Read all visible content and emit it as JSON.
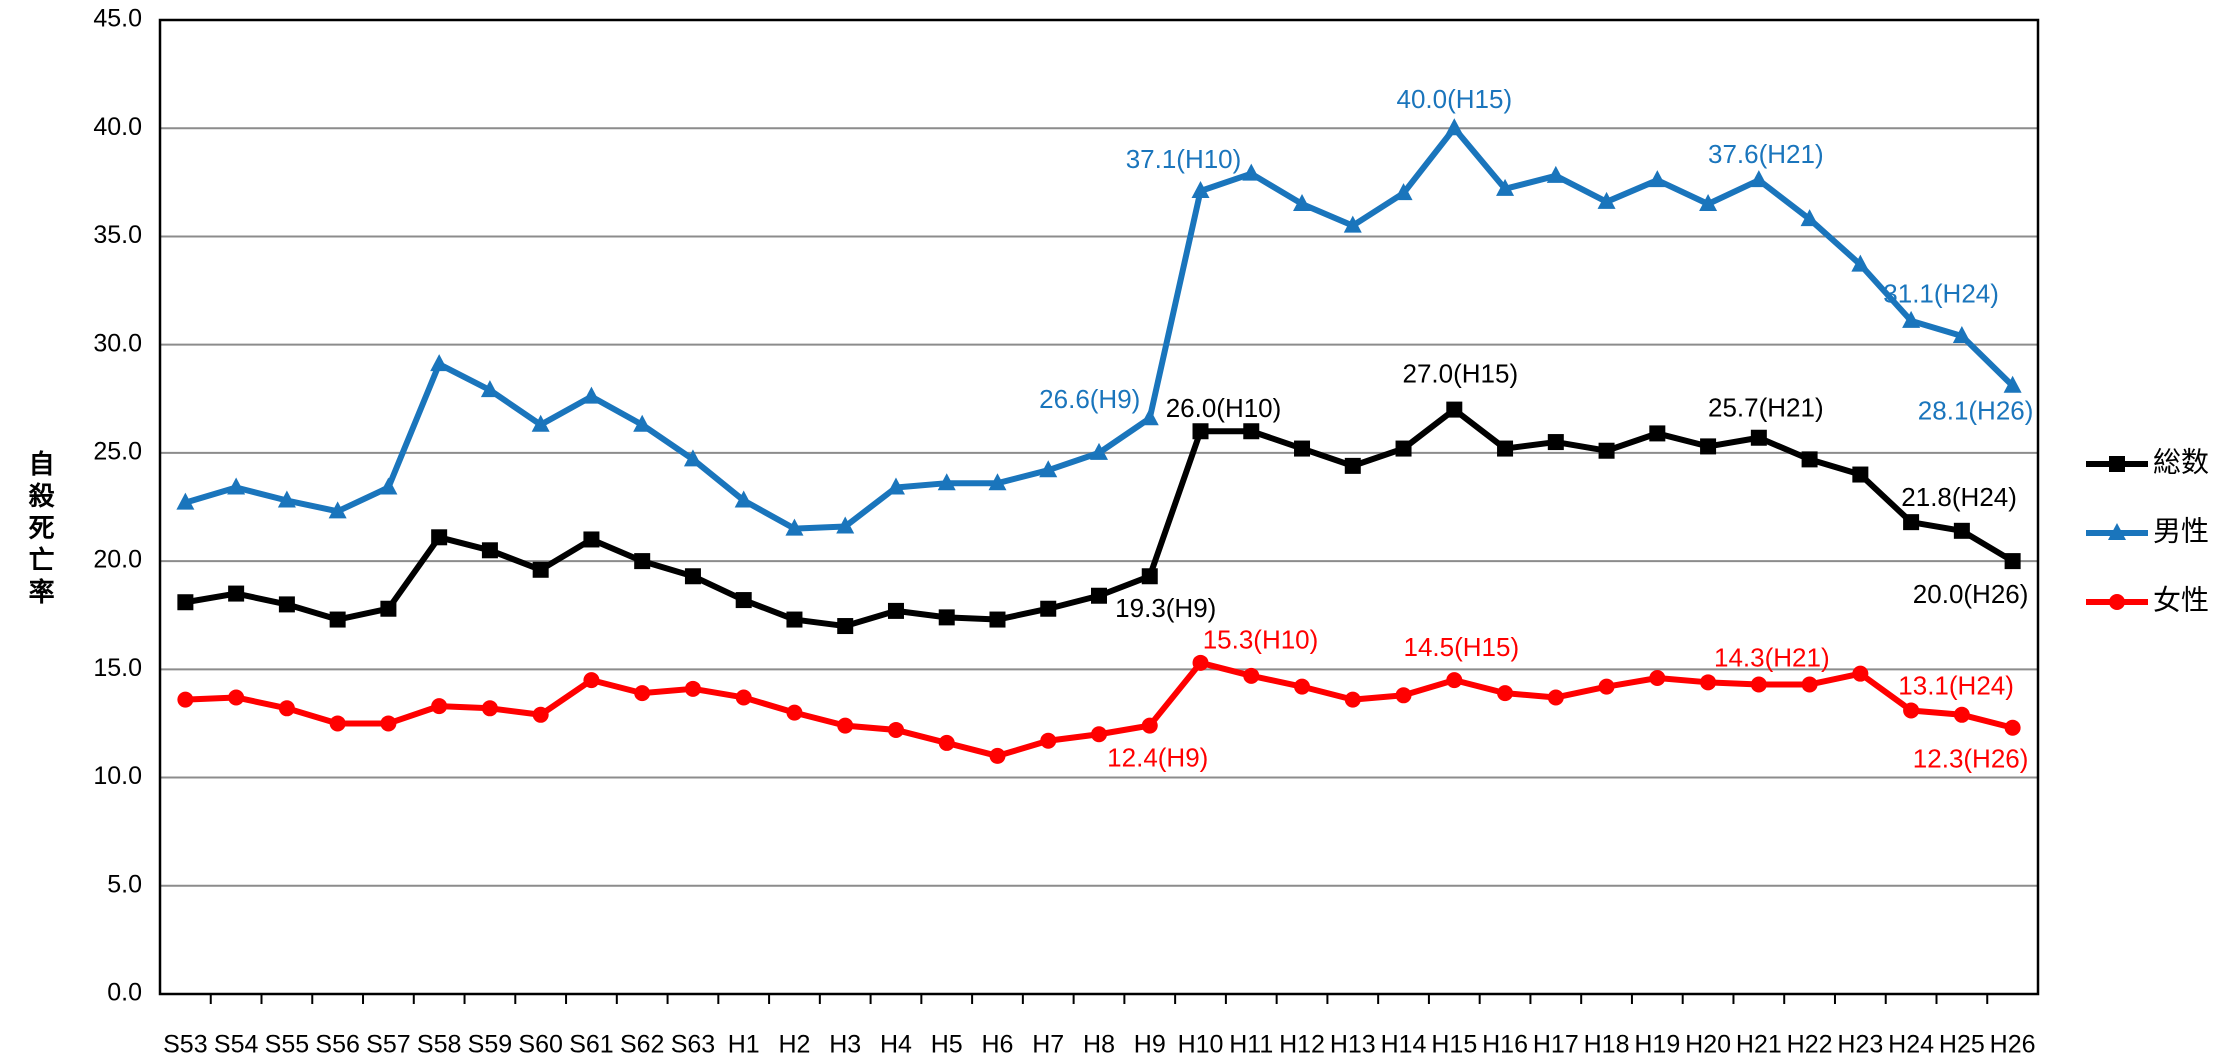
{
  "chart_data": {
    "type": "line",
    "y_label": "自殺死亡率",
    "categories": [
      "S53",
      "S54",
      "S55",
      "S56",
      "S57",
      "S58",
      "S59",
      "S60",
      "S61",
      "S62",
      "S63",
      "H1",
      "H2",
      "H3",
      "H4",
      "H5",
      "H6",
      "H7",
      "H8",
      "H9",
      "H10",
      "H11",
      "H12",
      "H13",
      "H14",
      "H15",
      "H16",
      "H17",
      "H18",
      "H19",
      "H20",
      "H21",
      "H22",
      "H23",
      "H24",
      "H25",
      "H26"
    ],
    "series": [
      {
        "name": "総数",
        "color": "#000000",
        "marker": "square",
        "values": [
          18.1,
          18.5,
          18.0,
          17.3,
          17.8,
          21.1,
          20.5,
          19.6,
          21.0,
          20.0,
          19.3,
          18.2,
          17.3,
          17.0,
          17.7,
          17.4,
          17.3,
          17.8,
          18.4,
          19.3,
          26.0,
          26.0,
          25.2,
          24.4,
          25.2,
          27.0,
          25.2,
          25.5,
          25.1,
          25.9,
          25.3,
          25.7,
          24.7,
          24.0,
          21.8,
          21.4,
          20.0
        ],
        "value_labels": [
          null,
          null,
          null,
          null,
          null,
          null,
          null,
          null,
          null,
          null,
          null,
          null,
          null,
          null,
          null,
          null,
          null,
          null,
          null,
          "19.3(H9)",
          "26.0(H10)",
          null,
          null,
          null,
          null,
          "27.0(H15)",
          null,
          null,
          null,
          null,
          null,
          "25.7(H21)",
          null,
          null,
          "21.8(H24)",
          null,
          "20.0(H26)"
        ]
      },
      {
        "name": "男性",
        "color": "#1a75bc",
        "marker": "triangle",
        "values": [
          22.7,
          23.4,
          22.8,
          22.3,
          23.4,
          29.1,
          27.9,
          26.3,
          27.6,
          26.3,
          24.7,
          22.8,
          21.5,
          21.6,
          23.4,
          23.6,
          23.6,
          24.2,
          25.0,
          26.6,
          37.1,
          37.9,
          36.5,
          35.5,
          37.0,
          40.0,
          37.2,
          37.8,
          36.6,
          37.6,
          36.5,
          37.6,
          35.8,
          33.7,
          31.1,
          30.4,
          28.1
        ],
        "value_labels": [
          null,
          null,
          null,
          null,
          null,
          null,
          null,
          null,
          null,
          null,
          null,
          null,
          null,
          null,
          null,
          null,
          null,
          null,
          null,
          "26.6(H9)",
          "37.1(H10)",
          null,
          null,
          null,
          null,
          "40.0(H15)",
          null,
          null,
          null,
          null,
          null,
          "37.6(H21)",
          null,
          null,
          "31.1(H24)",
          null,
          "28.1(H26)"
        ]
      },
      {
        "name": "女性",
        "color": "#ff0000",
        "marker": "circle",
        "values": [
          13.6,
          13.7,
          13.2,
          12.5,
          12.5,
          13.3,
          13.2,
          12.9,
          14.5,
          13.9,
          14.1,
          13.7,
          13.0,
          12.4,
          12.2,
          11.6,
          11.0,
          11.7,
          12.0,
          12.4,
          15.3,
          14.7,
          14.2,
          13.6,
          13.8,
          14.5,
          13.9,
          13.7,
          14.2,
          14.6,
          14.4,
          14.3,
          14.3,
          14.8,
          13.1,
          12.9,
          12.3
        ],
        "value_labels": [
          null,
          null,
          null,
          null,
          null,
          null,
          null,
          null,
          null,
          null,
          null,
          null,
          null,
          null,
          null,
          null,
          null,
          null,
          null,
          "12.4(H9)",
          "15.3(H10)",
          null,
          null,
          null,
          null,
          "14.5(H15)",
          null,
          null,
          null,
          null,
          null,
          "14.3(H21)",
          null,
          null,
          "13.1(H24)",
          null,
          "12.3(H26)"
        ]
      }
    ],
    "ylim": [
      0,
      45
    ],
    "yticks": [
      {
        "value": 0,
        "label": "0.0"
      },
      {
        "value": 5,
        "label": "5.0"
      },
      {
        "value": 10,
        "label": "10.0"
      },
      {
        "value": 15,
        "label": "15.0"
      },
      {
        "value": 20,
        "label": "20.0"
      },
      {
        "value": 25,
        "label": "25.0"
      },
      {
        "value": 30,
        "label": "30.0"
      },
      {
        "value": 35,
        "label": "35.0"
      },
      {
        "value": 40,
        "label": "40.0"
      },
      {
        "value": 45,
        "label": "45.0"
      }
    ],
    "grid": true,
    "legend": "right"
  }
}
